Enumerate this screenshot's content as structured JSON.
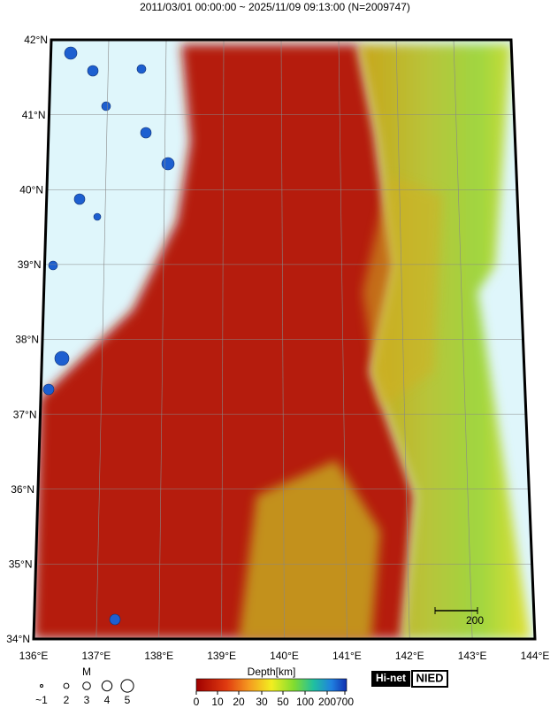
{
  "title": "2011/03/01 00:00:00 ~ 2025/11/09 09:13:00 (N=2009747)",
  "lat_labels": [
    "42°N",
    "41°N",
    "40°N",
    "39°N",
    "38°N",
    "37°N",
    "36°N",
    "35°N",
    "34°N"
  ],
  "lon_labels": [
    "136°E",
    "137°E",
    "138°E",
    "139°E",
    "140°E",
    "141°E",
    "142°E",
    "143°E",
    "144°E"
  ],
  "scale_label": "200",
  "legend": {
    "magnitude_label": "M",
    "magnitude_labels": [
      "~1",
      "2",
      "3",
      "4",
      "5"
    ],
    "depth_label": "Depth[km]",
    "depth_labels": [
      "0",
      "10",
      "20",
      "30",
      "50",
      "100",
      "200",
      "700"
    ]
  },
  "logo": {
    "hinet": "Hi-net",
    "nied": "NIED"
  }
}
